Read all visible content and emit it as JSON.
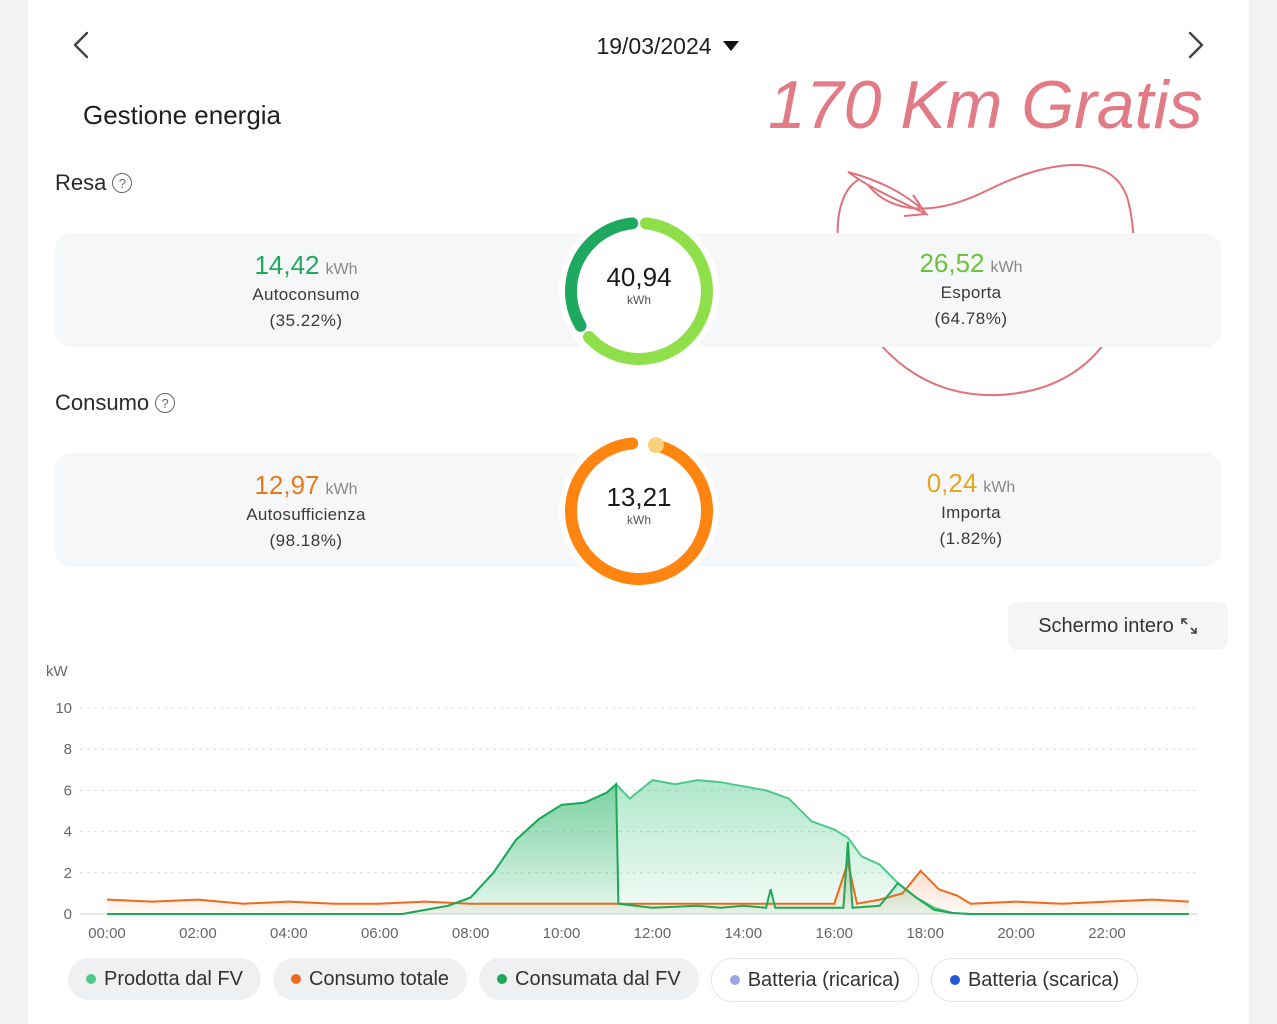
{
  "header": {
    "date": "19/03/2024"
  },
  "page_title": "Gestione energia",
  "resa": {
    "title": "Resa",
    "total": "40,94",
    "total_unit": "kWh",
    "left": {
      "value": "14,42",
      "unit": "kWh",
      "label": "Autoconsumo",
      "pct": "(35.22%)",
      "color": "#1faa5c"
    },
    "right": {
      "value": "26,52",
      "unit": "kWh",
      "label": "Esporta",
      "pct": "(64.78%)",
      "color": "#6cc33a"
    },
    "ring_fraction_self": 0.3522
  },
  "consumo": {
    "title": "Consumo",
    "total": "13,21",
    "total_unit": "kWh",
    "left": {
      "value": "12,97",
      "unit": "kWh",
      "label": "Autosufficienza",
      "pct": "(98.18%)",
      "color": "#e87a1e"
    },
    "right": {
      "value": "0,24",
      "unit": "kWh",
      "label": "Importa",
      "pct": "(1.82%)",
      "color": "#e0a81f"
    },
    "ring_fraction_import": 0.0182
  },
  "annotation": {
    "handwriting": "170 Km Gratis"
  },
  "fullscreen_label": "Schermo intero",
  "chart_data": {
    "type": "area",
    "ylabel": "kW",
    "ylim": [
      0,
      10
    ],
    "yticks": [
      "0",
      "2",
      "4",
      "6",
      "8",
      "10"
    ],
    "xticks": [
      "00:00",
      "02:00",
      "04:00",
      "06:00",
      "08:00",
      "10:00",
      "12:00",
      "14:00",
      "16:00",
      "18:00",
      "20:00",
      "22:00"
    ],
    "x_hours_range": [
      0,
      23.8
    ],
    "series": [
      {
        "name": "Prodotta dal FV",
        "color": "#4ec98a",
        "points": [
          [
            0,
            0
          ],
          [
            6.5,
            0
          ],
          [
            7.0,
            0.2
          ],
          [
            7.5,
            0.4
          ],
          [
            8.0,
            0.8
          ],
          [
            8.5,
            2
          ],
          [
            9.0,
            3.6
          ],
          [
            9.5,
            4.6
          ],
          [
            10.0,
            5.3
          ],
          [
            10.5,
            5.4
          ],
          [
            11.0,
            5.9
          ],
          [
            11.2,
            6.3
          ],
          [
            11.5,
            5.6
          ],
          [
            12.0,
            6.5
          ],
          [
            12.5,
            6.3
          ],
          [
            13.0,
            6.5
          ],
          [
            13.5,
            6.4
          ],
          [
            14.0,
            6.2
          ],
          [
            14.5,
            6.0
          ],
          [
            15.0,
            5.6
          ],
          [
            15.5,
            4.5
          ],
          [
            16.0,
            4.1
          ],
          [
            16.3,
            3.7
          ],
          [
            16.6,
            2.8
          ],
          [
            17.0,
            2.4
          ],
          [
            17.4,
            1.5
          ],
          [
            17.8,
            0.8
          ],
          [
            18.2,
            0.3
          ],
          [
            18.6,
            0.05
          ],
          [
            19.0,
            0
          ],
          [
            23.8,
            0
          ]
        ]
      },
      {
        "name": "Consumo totale",
        "color": "#f06a1b",
        "points": [
          [
            0,
            0.7
          ],
          [
            1,
            0.6
          ],
          [
            2,
            0.7
          ],
          [
            3,
            0.5
          ],
          [
            4,
            0.6
          ],
          [
            5,
            0.5
          ],
          [
            6,
            0.5
          ],
          [
            7,
            0.6
          ],
          [
            8,
            0.5
          ],
          [
            9,
            0.5
          ],
          [
            10,
            0.5
          ],
          [
            11,
            0.5
          ],
          [
            12,
            0.5
          ],
          [
            13,
            0.5
          ],
          [
            14,
            0.5
          ],
          [
            15,
            0.5
          ],
          [
            16,
            0.5
          ],
          [
            16.3,
            2.5
          ],
          [
            16.5,
            0.5
          ],
          [
            17.0,
            0.7
          ],
          [
            17.5,
            1.0
          ],
          [
            17.9,
            2.1
          ],
          [
            18.3,
            1.2
          ],
          [
            18.7,
            0.9
          ],
          [
            19.0,
            0.5
          ],
          [
            20,
            0.6
          ],
          [
            21,
            0.5
          ],
          [
            22,
            0.6
          ],
          [
            23,
            0.7
          ],
          [
            23.8,
            0.6
          ]
        ]
      },
      {
        "name": "Consumata dal FV",
        "color": "#1ea85a",
        "points": [
          [
            0,
            0
          ],
          [
            6.5,
            0
          ],
          [
            7.0,
            0.2
          ],
          [
            7.5,
            0.4
          ],
          [
            8.0,
            0.8
          ],
          [
            8.5,
            2
          ],
          [
            9.0,
            3.6
          ],
          [
            9.5,
            4.6
          ],
          [
            10.0,
            5.3
          ],
          [
            10.5,
            5.4
          ],
          [
            11.0,
            5.9
          ],
          [
            11.2,
            6.3
          ],
          [
            11.25,
            0.5
          ],
          [
            12,
            0.3
          ],
          [
            13,
            0.4
          ],
          [
            13.5,
            0.3
          ],
          [
            14.0,
            0.4
          ],
          [
            14.5,
            0.3
          ],
          [
            14.6,
            1.2
          ],
          [
            14.7,
            0.3
          ],
          [
            15.5,
            0.3
          ],
          [
            16.2,
            0.3
          ],
          [
            16.3,
            3.5
          ],
          [
            16.4,
            0.3
          ],
          [
            17.0,
            0.4
          ],
          [
            17.4,
            1.5
          ],
          [
            17.8,
            0.8
          ],
          [
            18.2,
            0.2
          ],
          [
            18.6,
            0.05
          ],
          [
            19.0,
            0
          ],
          [
            23.8,
            0
          ]
        ]
      },
      {
        "name": "Batteria (ricarica)",
        "color": "#9aa8e6",
        "points": []
      },
      {
        "name": "Batteria (scarica)",
        "color": "#2458d6",
        "points": []
      }
    ]
  }
}
